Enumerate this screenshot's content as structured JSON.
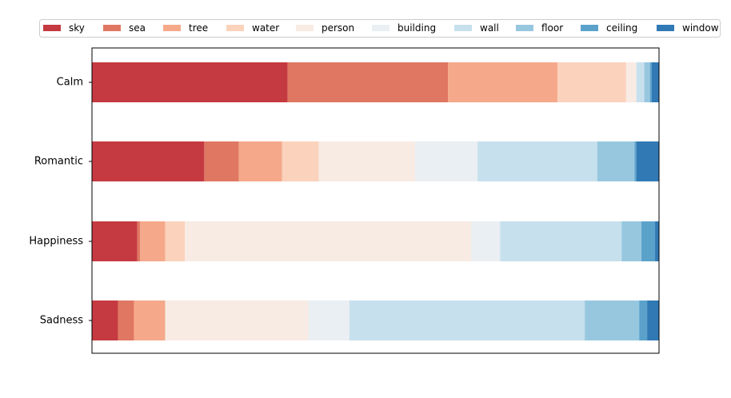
{
  "chart_data": {
    "type": "bar",
    "orientation": "horizontal",
    "stacked": true,
    "normalized": true,
    "categories": [
      "Calm",
      "Romantic",
      "Happiness",
      "Sadness"
    ],
    "xlim": [
      0,
      1
    ],
    "grid": false,
    "show_x_ticks": false,
    "legend_position": "top",
    "series": [
      {
        "name": "sky",
        "color": "#c53a40",
        "values": [
          0.345,
          0.198,
          0.08,
          0.046
        ]
      },
      {
        "name": "sea",
        "color": "#e07762",
        "values": [
          0.283,
          0.061,
          0.005,
          0.028
        ]
      },
      {
        "name": "tree",
        "color": "#f5a98a",
        "values": [
          0.193,
          0.076,
          0.044,
          0.055
        ]
      },
      {
        "name": "water",
        "color": "#fbd2bc",
        "values": [
          0.121,
          0.065,
          0.035,
          0.0
        ]
      },
      {
        "name": "person",
        "color": "#f8ebe4",
        "values": [
          0.018,
          0.17,
          0.505,
          0.253
        ]
      },
      {
        "name": "building",
        "color": "#e9eff3",
        "values": [
          0.0,
          0.11,
          0.051,
          0.072
        ]
      },
      {
        "name": "wall",
        "color": "#c7e0ed",
        "values": [
          0.014,
          0.211,
          0.214,
          0.415
        ]
      },
      {
        "name": "floor",
        "color": "#97c7df",
        "values": [
          0.01,
          0.066,
          0.035,
          0.096
        ]
      },
      {
        "name": "ceiling",
        "color": "#5ba2cb",
        "values": [
          0.003,
          0.003,
          0.024,
          0.014
        ]
      },
      {
        "name": "window",
        "color": "#3179b5",
        "values": [
          0.013,
          0.04,
          0.007,
          0.021
        ]
      }
    ]
  }
}
